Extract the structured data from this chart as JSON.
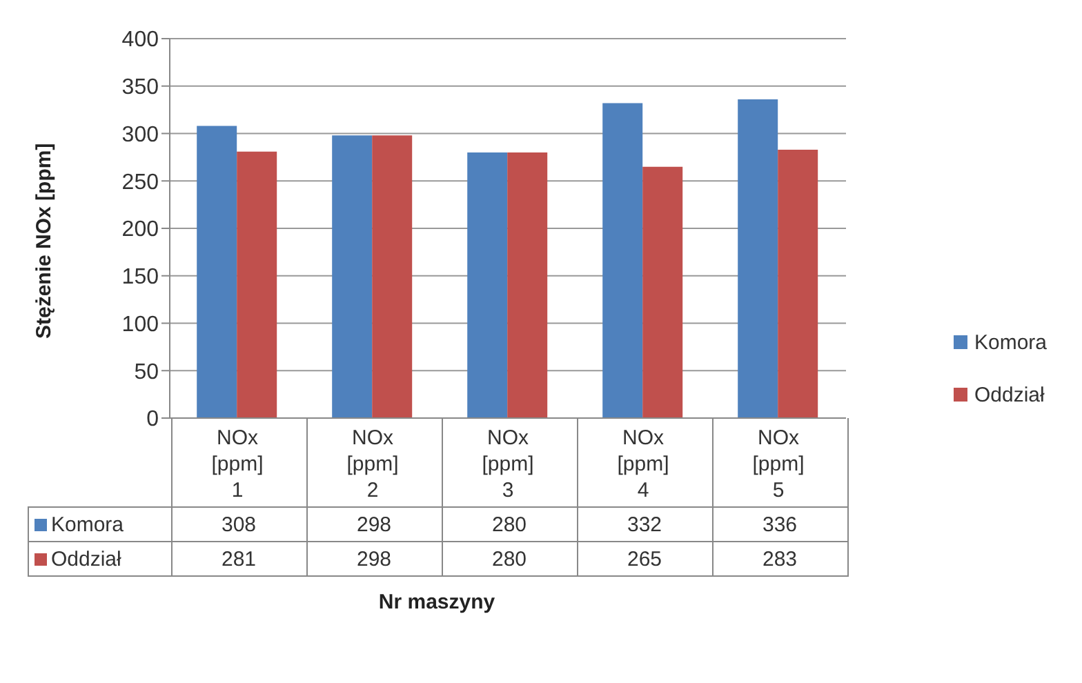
{
  "chart_data": {
    "type": "bar",
    "ylabel": "Stężenie NOx [ppm]",
    "xlabel": "Nr maszyny",
    "categories": [
      "NOx [ppm] 1",
      "NOx [ppm] 2",
      "NOx [ppm] 3",
      "NOx [ppm] 4",
      "NOx [ppm] 5"
    ],
    "series": [
      {
        "name": "Komora",
        "color": "#4f81bd",
        "values": [
          308,
          298,
          280,
          332,
          336
        ]
      },
      {
        "name": "Oddział",
        "color": "#c0504d",
        "values": [
          281,
          298,
          280,
          265,
          283
        ]
      }
    ],
    "ylim": [
      0,
      400
    ],
    "yticks": [
      0,
      50,
      100,
      150,
      200,
      250,
      300,
      350,
      400
    ],
    "grid": "y",
    "legend": "right",
    "data_labels": true
  }
}
